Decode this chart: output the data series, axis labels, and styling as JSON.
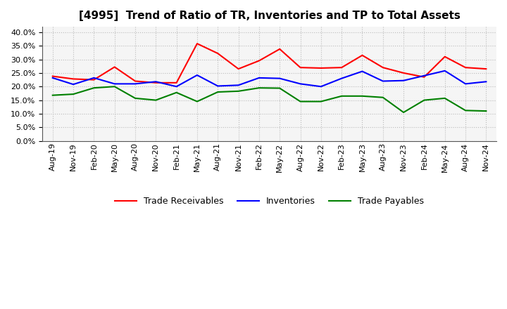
{
  "title": "[4995]  Trend of Ratio of TR, Inventories and TP to Total Assets",
  "labels": [
    "Aug-19",
    "Nov-19",
    "Feb-20",
    "May-20",
    "Aug-20",
    "Nov-20",
    "Feb-21",
    "May-21",
    "Aug-21",
    "Nov-21",
    "Feb-22",
    "May-22",
    "Aug-22",
    "Nov-22",
    "Feb-23",
    "May-23",
    "Aug-23",
    "Nov-23",
    "Feb-24",
    "May-24",
    "Aug-24",
    "Nov-24"
  ],
  "trade_receivables": [
    0.238,
    0.228,
    0.225,
    0.272,
    0.22,
    0.214,
    0.214,
    0.358,
    0.322,
    0.265,
    0.295,
    0.338,
    0.27,
    0.268,
    0.27,
    0.315,
    0.27,
    0.25,
    0.235,
    0.31,
    0.27,
    0.265
  ],
  "inventories": [
    0.232,
    0.208,
    0.232,
    0.21,
    0.21,
    0.218,
    0.2,
    0.242,
    0.202,
    0.205,
    0.232,
    0.23,
    0.21,
    0.2,
    0.23,
    0.256,
    0.22,
    0.222,
    0.24,
    0.258,
    0.21,
    0.218
  ],
  "trade_payables": [
    0.168,
    0.172,
    0.195,
    0.2,
    0.157,
    0.15,
    0.178,
    0.145,
    0.18,
    0.183,
    0.195,
    0.194,
    0.145,
    0.145,
    0.165,
    0.165,
    0.16,
    0.105,
    0.15,
    0.157,
    0.112,
    0.11
  ],
  "colors": {
    "trade_receivables": "#FF0000",
    "inventories": "#0000FF",
    "trade_payables": "#008000"
  },
  "ylim": [
    0.0,
    0.42
  ],
  "yticks": [
    0.0,
    0.05,
    0.1,
    0.15,
    0.2,
    0.25,
    0.3,
    0.35,
    0.4
  ],
  "background_color": "#ffffff",
  "plot_bg_color": "#f5f5f5",
  "grid_color": "#bbbbbb",
  "title_fontsize": 11,
  "tick_fontsize": 8,
  "legend_fontsize": 9,
  "linewidth": 1.5
}
